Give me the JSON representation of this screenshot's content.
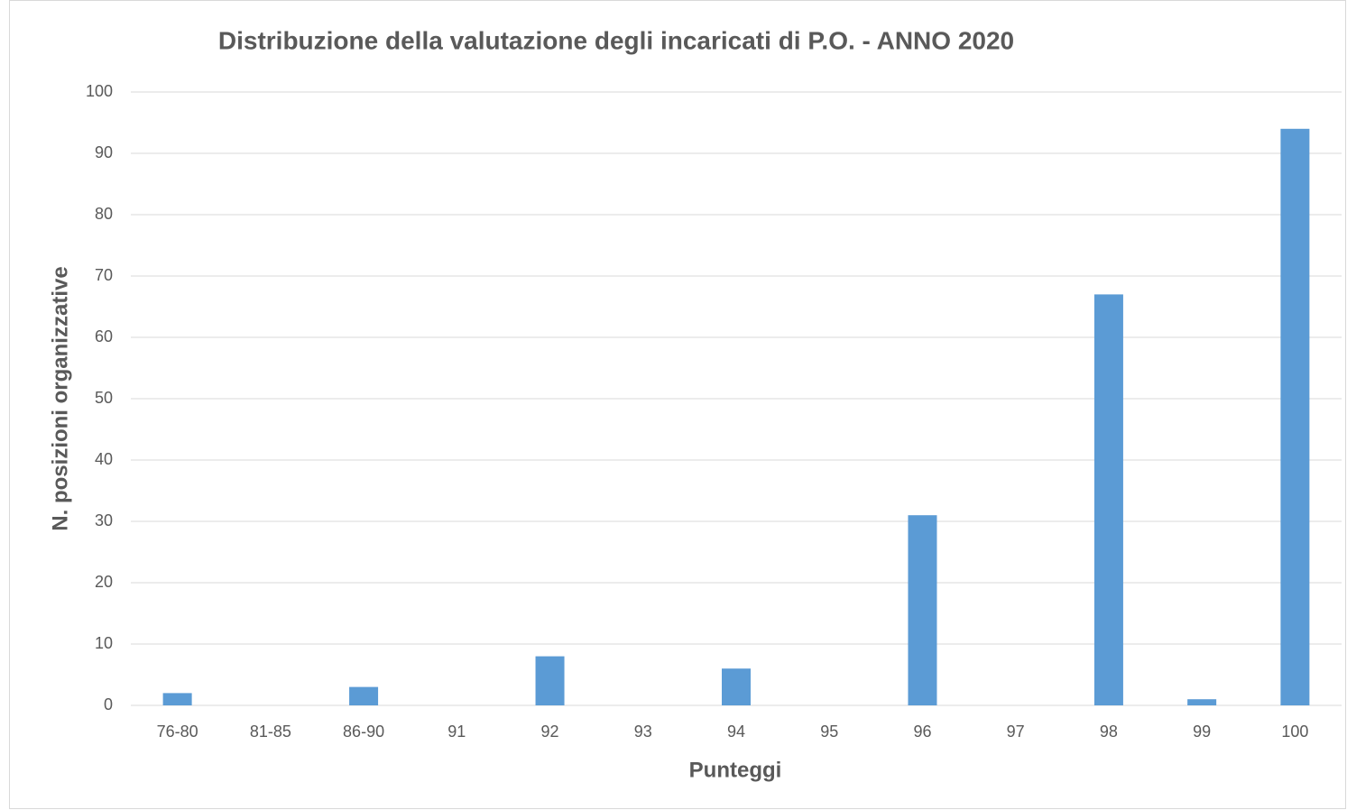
{
  "chart_data": {
    "type": "bar",
    "title": "Distribuzione della valutazione degli incaricati di P.O. - ANNO 2020",
    "x_label": "Punteggi",
    "y_label": "N. posizioni organizzative",
    "categories": [
      "76-80",
      "81-85",
      "86-90",
      "91",
      "92",
      "93",
      "94",
      "95",
      "96",
      "97",
      "98",
      "99",
      "100"
    ],
    "values": [
      2,
      0,
      3,
      0,
      8,
      0,
      6,
      0,
      31,
      0,
      67,
      1,
      94
    ],
    "color": "#5b9bd5",
    "ylim": [
      0,
      100
    ],
    "yticks": [
      0,
      10,
      20,
      30,
      40,
      50,
      60,
      70,
      80,
      90,
      100
    ],
    "grid": true
  }
}
